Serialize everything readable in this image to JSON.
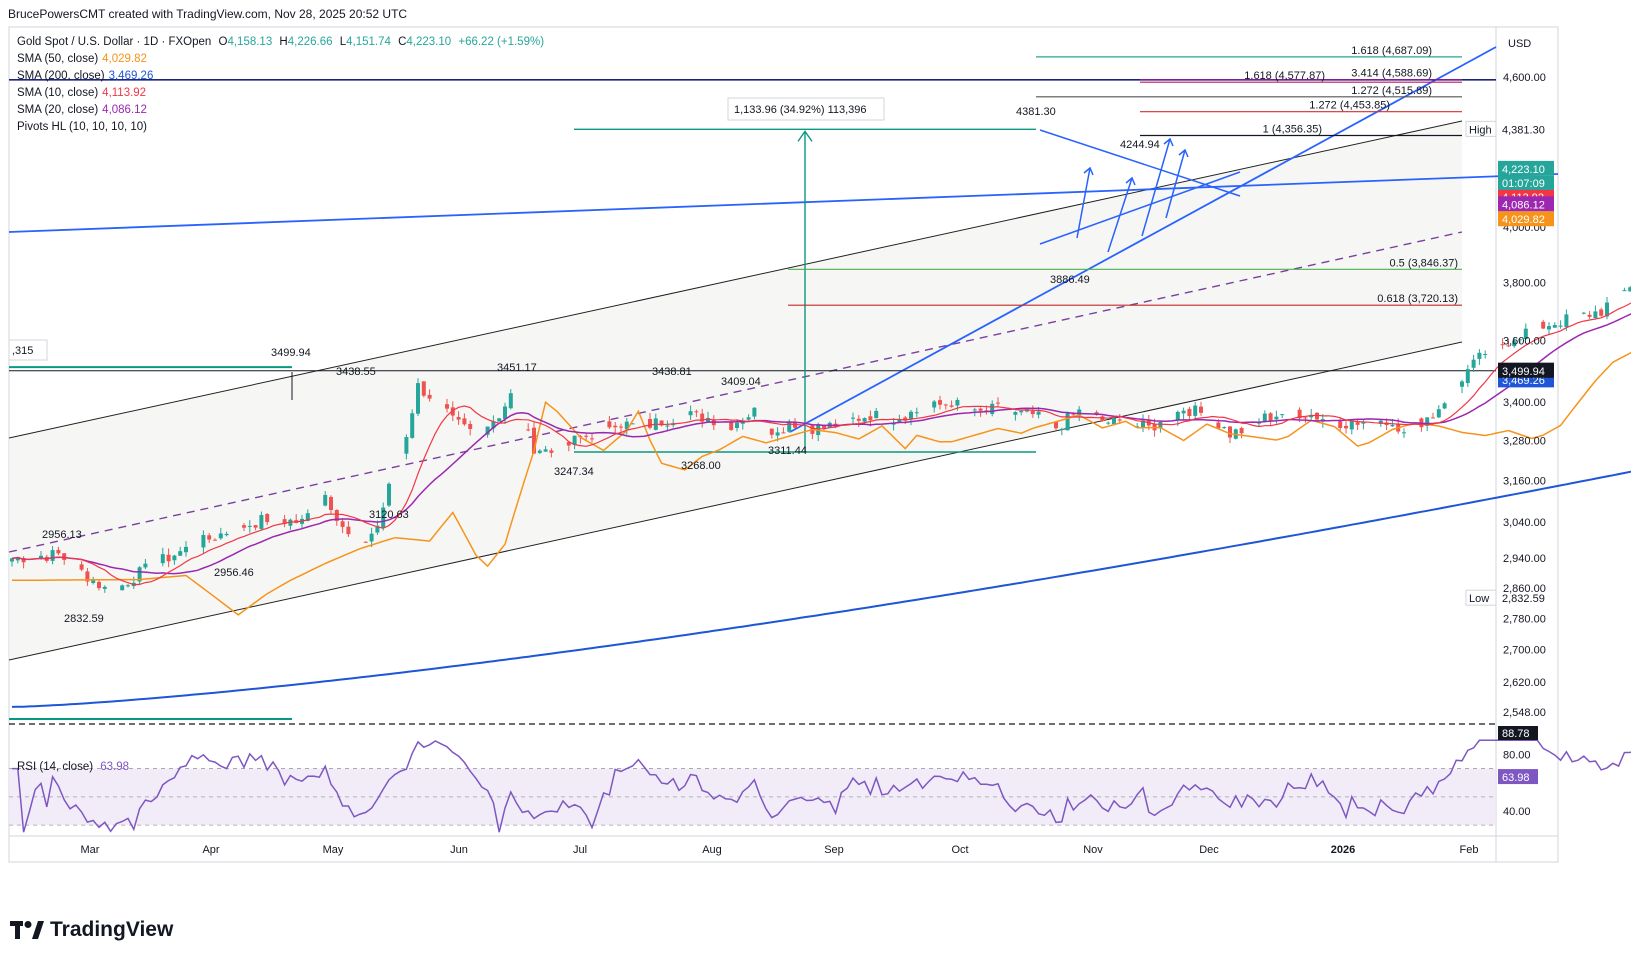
{
  "header": {
    "created_by": "BrucePowersCMT created with TradingView.com, Nov 28, 2025 20:52 UTC"
  },
  "legend": {
    "symbol": "Gold Spot / U.S. Dollar · 1D · FXOpen",
    "ohlc": {
      "o_label": "O",
      "o": "4,158.13",
      "h_label": "H",
      "h": "4,226.66",
      "l_label": "L",
      "l": "4,151.74",
      "c_label": "C",
      "c": "4,223.10",
      "change": "+66.22 (+1.59%)"
    },
    "sma50": {
      "label": "SMA (50, close)",
      "value": "4,029.82"
    },
    "sma200": {
      "label": "SMA (200, close)",
      "value": "3,469.26"
    },
    "sma10": {
      "label": "SMA (10, close)",
      "value": "4,113.92"
    },
    "sma20": {
      "label": "SMA (20, close)",
      "value": "4,086.12"
    },
    "pivots": {
      "label": "Pivots HL (10, 10, 10, 10)"
    }
  },
  "rsi_legend": {
    "label": "RSI (14, close)",
    "value": "63.98"
  },
  "brand": {
    "name": "TradingView"
  },
  "colors": {
    "up": "#26a69a",
    "down": "#ef5350",
    "sma50": "#f7931a",
    "sma200": "#1e56d6",
    "sma10": "#f23645",
    "sma20": "#9c27b0",
    "rsi": "#7e57c2",
    "trend": "#2962ff",
    "fib_green": "#4caf50",
    "fib_red": "#c2185b",
    "measure": "#089981"
  },
  "chart_data": {
    "type": "candlestick",
    "price_axis": {
      "unit_label": "USD",
      "ticks": [
        "4,600.00",
        "4,381.30",
        "4,223.10",
        "4,000.00",
        "3,800.00",
        "3,600.00",
        "3,499.94",
        "3,469.26",
        "3,400.00",
        "3,280.00",
        "3,160.00",
        "3,040.00",
        "2,940.00",
        "2,860.00",
        "2,832.59",
        "2,780.00",
        "2,700.00",
        "2,620.00",
        "2,548.00"
      ],
      "ylim": [
        2548,
        4720
      ]
    },
    "time_axis": {
      "labels": [
        "Mar",
        "Apr",
        "May",
        "Jun",
        "Jul",
        "Aug",
        "Sep",
        "Oct",
        "Nov",
        "Dec",
        "2026",
        "Feb"
      ]
    },
    "last": {
      "price": "4,223.10",
      "countdown": "01:07:09"
    },
    "price_tags": {
      "high_label": "High",
      "high": "4,381.30",
      "low_label": "Low",
      "low": "2,832.59",
      "sma10": "4,113.92",
      "sma20": "4,086.12",
      "sma50": "4,029.82",
      "sma200": "3,469.26",
      "level": "3,499.94",
      "left_level": ",315"
    },
    "fib_levels": [
      {
        "label": "1.618 (4,687.09)",
        "value": 4687.09
      },
      {
        "label": "1.618 (4,577.87)",
        "value": 4577.87
      },
      {
        "label": "3.414 (4,588.69)",
        "value": 4588.69
      },
      {
        "label": "1.272 (4,515.89)",
        "value": 4515.89
      },
      {
        "label": "1.272 (4,453.85)",
        "value": 4453.85
      },
      {
        "label": "1 (4,356.35)",
        "value": 4356.35
      },
      {
        "label": "0.5 (3,846.37)",
        "value": 3846.37
      },
      {
        "label": "0.618 (3,720.13)",
        "value": 3720.13
      }
    ],
    "pivot_annotations": [
      "4381.30",
      "4244.94",
      "3886.49",
      "3499.94",
      "3438.55",
      "3451.17",
      "3438.81",
      "3409.04",
      "3311.44",
      "3247.34",
      "3268.00",
      "3120.63",
      "2956.13",
      "2956.46",
      "2832.59"
    ],
    "measure_label": "1,133.96 (34.92%) 113,396",
    "rsi": {
      "name": "RSI (14, close)",
      "ticks": [
        "88.78",
        "80.00",
        "63.98",
        "40.00"
      ],
      "last": "63.98",
      "upper_band": 70,
      "lower_band": 30
    },
    "series": [
      {
        "name": "SMA (50, close)"
      },
      {
        "name": "SMA (200, close)"
      },
      {
        "name": "SMA (10, close)"
      },
      {
        "name": "SMA (20, close)"
      }
    ]
  }
}
